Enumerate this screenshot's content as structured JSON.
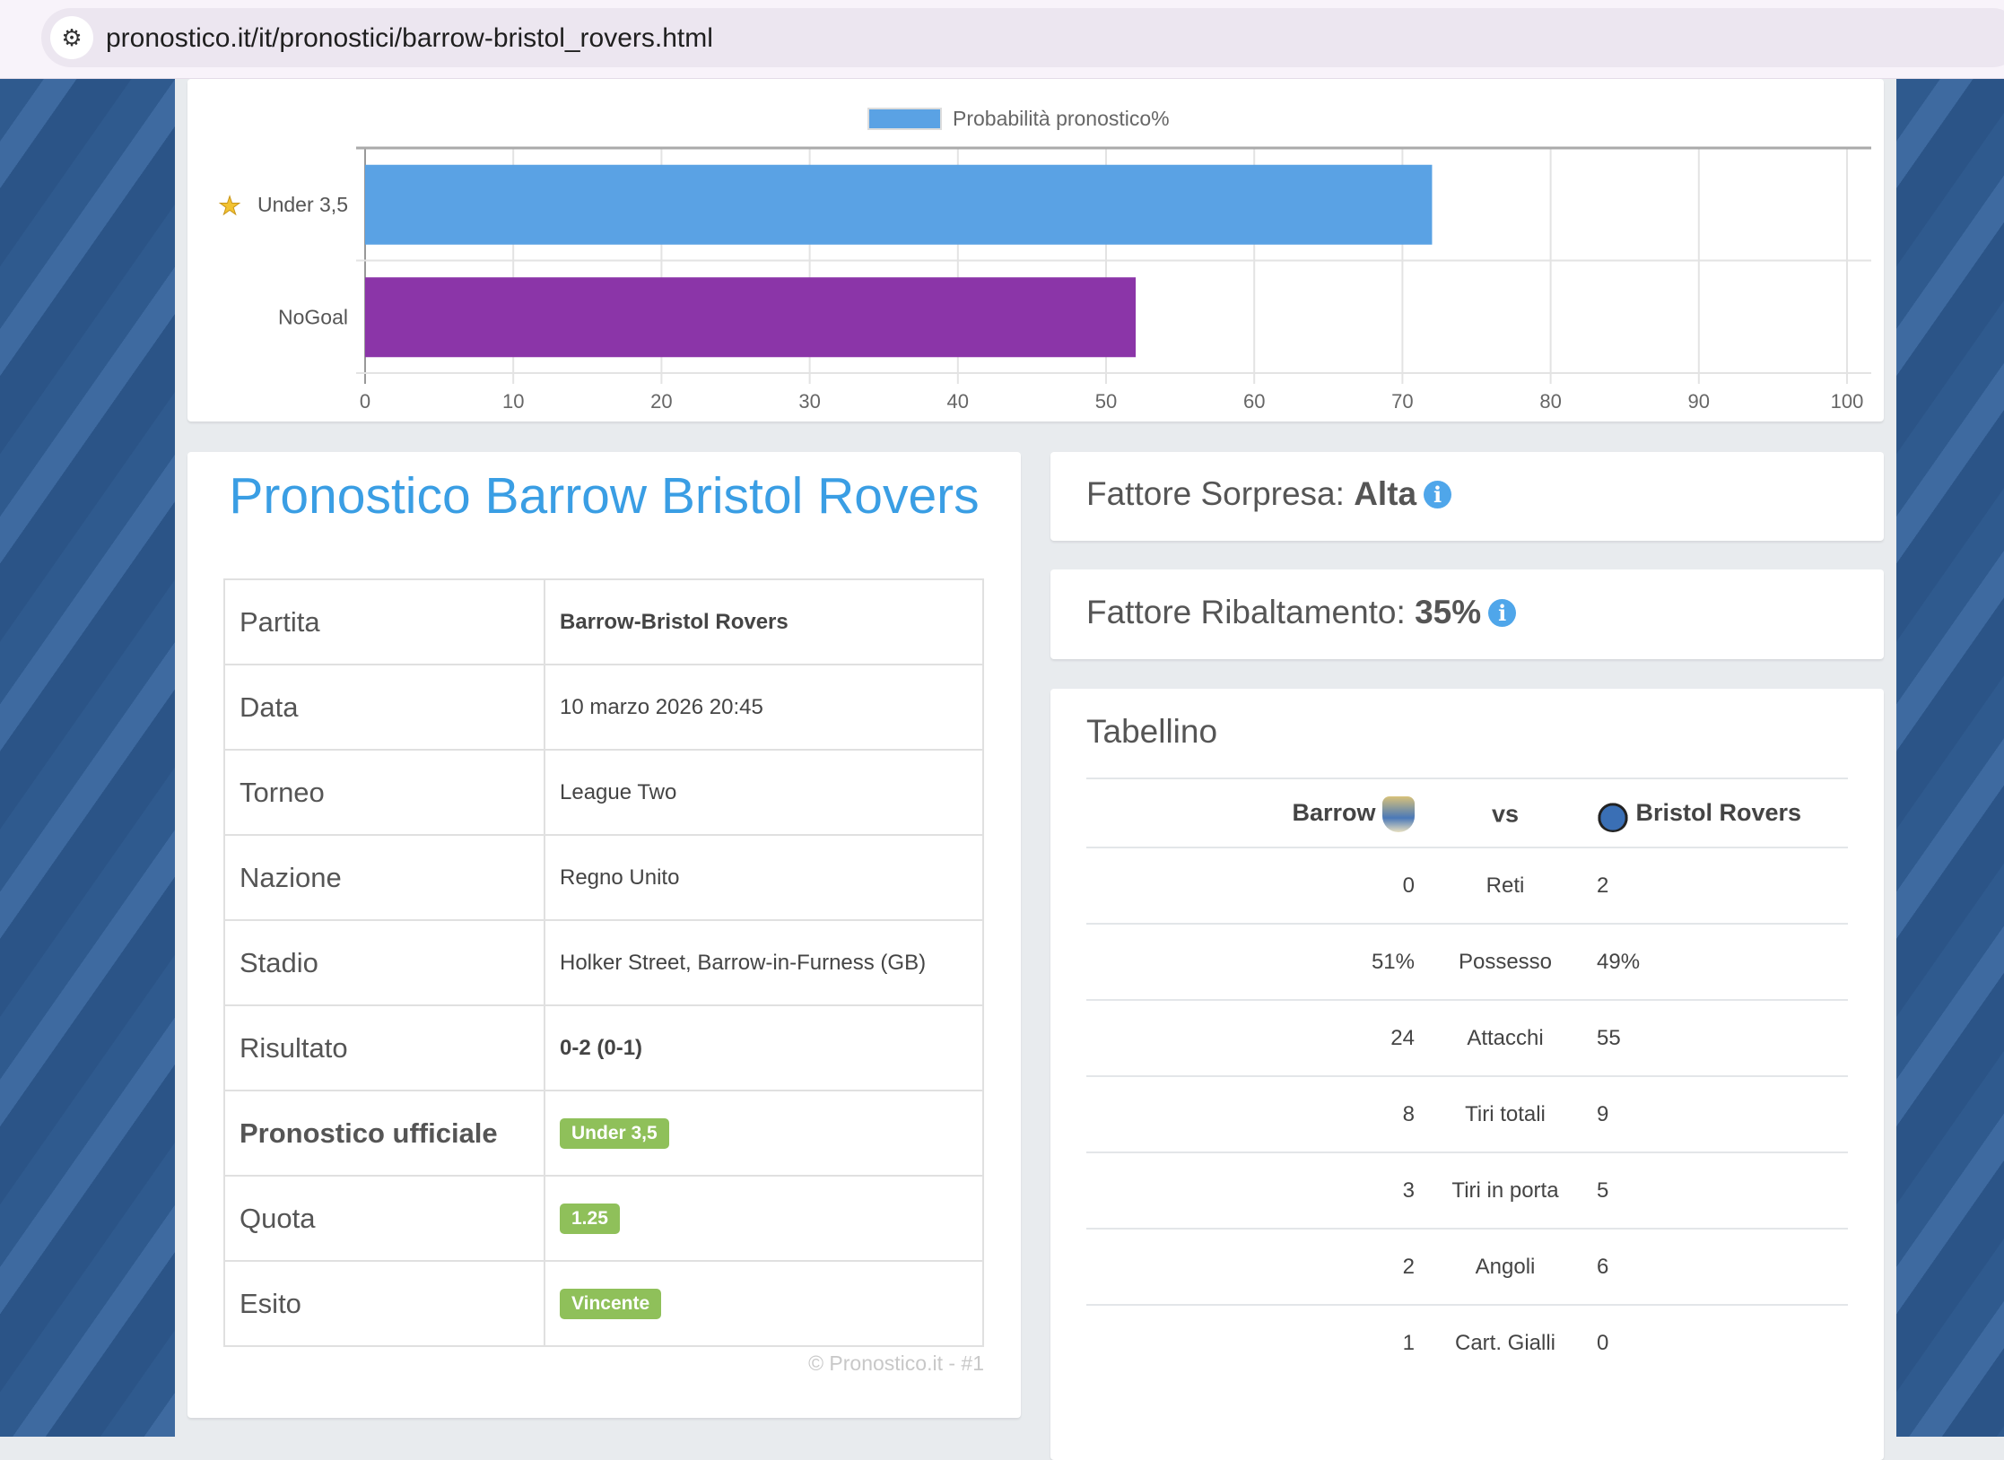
{
  "browser": {
    "url": "pronostico.it/it/pronostici/barrow-bristol_rovers.html",
    "site_icon": "tune-icon"
  },
  "chart_data": {
    "type": "bar",
    "orientation": "horizontal",
    "categories": [
      "Under 3,5",
      "NoGoal"
    ],
    "values": [
      72,
      52
    ],
    "bar_colors": [
      "#5aa2e4",
      "#8b35a8"
    ],
    "legend": "Probabilità pronostico%",
    "legend_position": "top",
    "xlim": [
      0,
      100
    ],
    "xticks": [
      0,
      10,
      20,
      30,
      40,
      50,
      60,
      70,
      80,
      90,
      100
    ],
    "grid": true,
    "highlight_icon": "star-icon"
  },
  "pronostico": {
    "title": "Pronostico Barrow Bristol Rovers",
    "rows": [
      {
        "label": "Partita",
        "value": "Barrow-Bristol Rovers"
      },
      {
        "label": "Data",
        "value": "10 marzo 2026 20:45"
      },
      {
        "label": "Torneo",
        "value": "League Two"
      },
      {
        "label": "Nazione",
        "value": "Regno Unito"
      },
      {
        "label": "Stadio",
        "value": "Holker Street, Barrow-in-Furness (GB)"
      },
      {
        "label": "Risultato",
        "value": "0-2 (0-1)"
      },
      {
        "label": "Pronostico ufficiale",
        "value": "Under 3,5"
      },
      {
        "label": "Quota",
        "value": "1.25"
      },
      {
        "label": "Esito",
        "value": "Vincente"
      }
    ],
    "footer": "© Pronostico.it - #1",
    "badge_color": "#8fc05a"
  },
  "fattore_sorpresa": {
    "label": "Fattore Sorpresa:",
    "value": "Alta"
  },
  "fattore_ribaltamento": {
    "label": "Fattore Ribaltamento:",
    "value": "35%"
  },
  "tabellino": {
    "title": "Tabellino",
    "home": "Barrow",
    "vs": "vs",
    "away": "Bristol Rovers",
    "rows": [
      {
        "home": "0",
        "stat": "Reti",
        "away": "2"
      },
      {
        "home": "51%",
        "stat": "Possesso",
        "away": "49%"
      },
      {
        "home": "24",
        "stat": "Attacchi",
        "away": "55"
      },
      {
        "home": "8",
        "stat": "Tiri totali",
        "away": "9"
      },
      {
        "home": "3",
        "stat": "Tiri in porta",
        "away": "5"
      },
      {
        "home": "2",
        "stat": "Angoli",
        "away": "6"
      },
      {
        "home": "1",
        "stat": "Cart. Gialli",
        "away": "0"
      }
    ]
  }
}
